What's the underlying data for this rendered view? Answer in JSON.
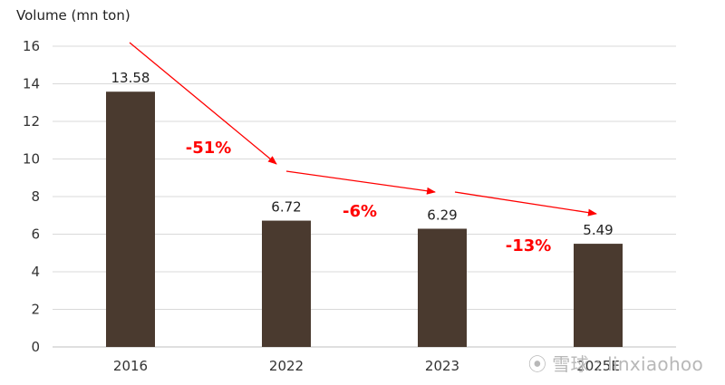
{
  "chart_data": {
    "type": "bar",
    "title": "",
    "xlabel": "",
    "ylabel": "Volume (mn ton)",
    "categories": [
      "2016",
      "2022",
      "2023",
      "2025E"
    ],
    "values": [
      13.58,
      6.72,
      6.29,
      5.49
    ],
    "data_labels": [
      "13.58",
      "6.72",
      "6.29",
      "5.49"
    ],
    "ylim": [
      0,
      16
    ],
    "yticks": [
      "0",
      "2",
      "4",
      "6",
      "8",
      "10",
      "12",
      "14",
      "16"
    ],
    "grid": true,
    "bar_color": "#4a3a2f",
    "annotations": [
      {
        "text": "-51%",
        "from": "2016",
        "to": "2022",
        "color": "#ff0000"
      },
      {
        "text": "-6%",
        "from": "2022",
        "to": "2023",
        "color": "#ff0000"
      },
      {
        "text": "-13%",
        "from": "2023",
        "to": "2025E",
        "color": "#ff0000"
      }
    ]
  },
  "watermark": {
    "logo": "⦿",
    "text": "雪球 : linxiaohoo"
  }
}
